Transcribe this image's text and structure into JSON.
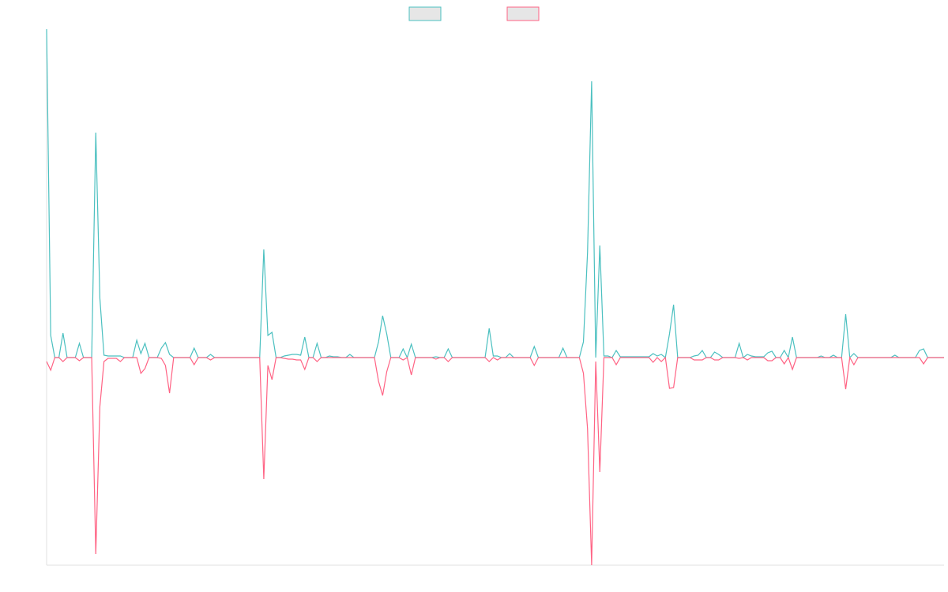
{
  "chart_data": {
    "type": "line",
    "ylim": [
      -263,
      416
    ],
    "series": [
      {
        "color": "#4bc0c0",
        "values": [
          416,
          28,
          0,
          0,
          31,
          0,
          0,
          0,
          18,
          0,
          0,
          0,
          285,
          75,
          3,
          2,
          2,
          2,
          2,
          0,
          0,
          0,
          22,
          5,
          18,
          0,
          0,
          0,
          12,
          19,
          4,
          0,
          0,
          0,
          0,
          0,
          12,
          0,
          0,
          0,
          4,
          0,
          0,
          0,
          0,
          0,
          0,
          0,
          0,
          0,
          0,
          0,
          0,
          137,
          28,
          32,
          0,
          0,
          2,
          3,
          4,
          4,
          3,
          26,
          0,
          0,
          18,
          0,
          0,
          2,
          1,
          1,
          0,
          0,
          4,
          0,
          0,
          0,
          0,
          0,
          0,
          20,
          53,
          30,
          0,
          0,
          0,
          11,
          0,
          17,
          0,
          0,
          0,
          0,
          0,
          1,
          0,
          0,
          11,
          0,
          0,
          0,
          0,
          0,
          0,
          0,
          0,
          0,
          37,
          2,
          2,
          0,
          0,
          5,
          0,
          0,
          0,
          0,
          0,
          14,
          0,
          0,
          0,
          0,
          0,
          0,
          12,
          0,
          0,
          0,
          0,
          20,
          133,
          350,
          0,
          142,
          2,
          2,
          0,
          9,
          1,
          1,
          1,
          1,
          1,
          1,
          1,
          1,
          5,
          2,
          4,
          0,
          30,
          67,
          0,
          0,
          0,
          0,
          2,
          3,
          9,
          0,
          0,
          7,
          4,
          0,
          0,
          0,
          0,
          18,
          0,
          4,
          2,
          1,
          1,
          1,
          6,
          8,
          0,
          0,
          9,
          0,
          26,
          0,
          0,
          0,
          0,
          0,
          0,
          2,
          0,
          0,
          3,
          0,
          0,
          55,
          0,
          5,
          0,
          0,
          0,
          0,
          0,
          0,
          0,
          0,
          0,
          3,
          0,
          0,
          0,
          0,
          0,
          9,
          11,
          0,
          0,
          0,
          0,
          0
        ]
      },
      {
        "color": "#ff6384",
        "values": [
          -5,
          -16,
          0,
          0,
          -5,
          0,
          0,
          0,
          -4,
          0,
          0,
          0,
          -249,
          -62,
          -5,
          -1,
          -1,
          -1,
          -5,
          0,
          0,
          0,
          0,
          -20,
          -14,
          0,
          0,
          0,
          -1,
          -10,
          -45,
          0,
          0,
          0,
          0,
          0,
          -9,
          0,
          0,
          0,
          -3,
          0,
          0,
          0,
          0,
          0,
          0,
          0,
          0,
          0,
          0,
          0,
          0,
          -154,
          -10,
          -28,
          0,
          0,
          -1,
          -2,
          -2,
          -3,
          -3,
          -15,
          0,
          0,
          -5,
          0,
          0,
          0,
          0,
          0,
          0,
          0,
          0,
          0,
          0,
          0,
          0,
          0,
          0,
          -30,
          -48,
          -18,
          0,
          0,
          0,
          -3,
          0,
          -22,
          0,
          0,
          0,
          0,
          0,
          -2,
          0,
          0,
          -5,
          0,
          0,
          0,
          0,
          0,
          0,
          0,
          0,
          0,
          -5,
          0,
          -3,
          0,
          0,
          0,
          0,
          0,
          0,
          0,
          0,
          -10,
          0,
          0,
          0,
          0,
          0,
          0,
          0,
          0,
          0,
          0,
          0,
          -20,
          -90,
          -263,
          -5,
          -145,
          0,
          0,
          0,
          -9,
          0,
          0,
          0,
          0,
          0,
          0,
          0,
          0,
          -6,
          0,
          -5,
          0,
          -39,
          -38,
          0,
          0,
          0,
          0,
          -3,
          -3,
          -3,
          0,
          0,
          -3,
          -3,
          0,
          0,
          0,
          0,
          -1,
          0,
          -3,
          0,
          0,
          0,
          0,
          -4,
          -4,
          0,
          0,
          -8,
          0,
          -15,
          0,
          0,
          0,
          0,
          0,
          0,
          0,
          0,
          0,
          0,
          0,
          0,
          -40,
          0,
          -9,
          0,
          0,
          0,
          0,
          0,
          0,
          0,
          0,
          0,
          0,
          0,
          0,
          0,
          0,
          0,
          0,
          -8,
          0,
          0,
          0,
          0,
          0
        ]
      }
    ]
  }
}
